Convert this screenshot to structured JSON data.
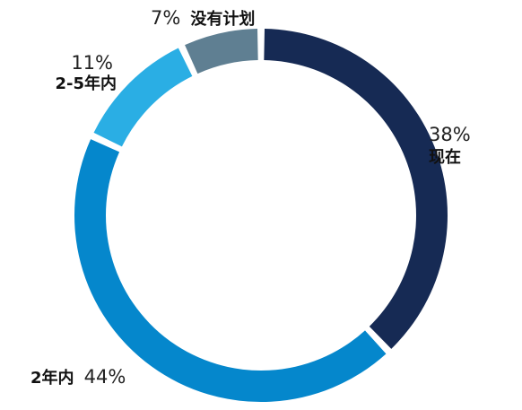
{
  "chart_data": {
    "type": "pie",
    "donut": true,
    "slices": [
      {
        "label": "现在",
        "value": 38,
        "value_label": "38%",
        "color": "#162a54"
      },
      {
        "label": "2年内",
        "value": 44,
        "value_label": "44%",
        "color": "#0587cc"
      },
      {
        "label": "2-5年内",
        "value": 11,
        "value_label": "11%",
        "color": "#2aaee4"
      },
      {
        "label": "没有计划",
        "value": 7,
        "value_label": "7%",
        "color": "#5f7f92"
      }
    ]
  }
}
